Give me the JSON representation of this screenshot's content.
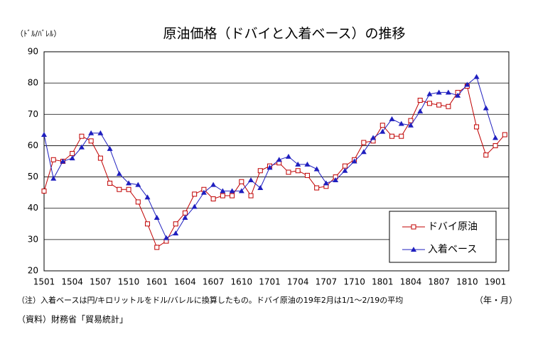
{
  "chart_data": {
    "type": "line",
    "title": "原油価格（ドバイと入着ベース）の推移",
    "y_unit": "（ﾄﾞﾙ/ﾊﾞﾚﾙ）",
    "x_unit": "（年・月）",
    "note": "（注）入着ベースは円/キロリットルをドル/バレルに換算したもの。ドバイ原油の19年2月は1/1～2/19の平均",
    "source": "（資料）財務省「貿易統計」",
    "categories": [
      "1501",
      null,
      null,
      "1504",
      null,
      null,
      "1507",
      null,
      null,
      "1510",
      null,
      null,
      "1601",
      null,
      null,
      "1604",
      null,
      null,
      "1607",
      null,
      null,
      "1610",
      null,
      null,
      "1701",
      null,
      null,
      "1704",
      null,
      null,
      "1707",
      null,
      null,
      "1710",
      null,
      null,
      "1801",
      null,
      null,
      "1804",
      null,
      null,
      "1807",
      null,
      null,
      "1810",
      null,
      null,
      "1901",
      null
    ],
    "series": [
      {
        "name": "ドバイ原油",
        "color": "#c00000",
        "marker": "square",
        "values": [
          45.5,
          55.5,
          55,
          57.5,
          63,
          61.5,
          56,
          48,
          46,
          46,
          42,
          35,
          27.5,
          29.5,
          35,
          38.5,
          44.5,
          46,
          43,
          44,
          44,
          48.5,
          44,
          52,
          53.5,
          54.5,
          51.5,
          52,
          50.5,
          46.5,
          47,
          50,
          53.5,
          55.5,
          61,
          61.5,
          66.5,
          63,
          63,
          68,
          74.5,
          73.5,
          73,
          72.5,
          77,
          79,
          66,
          57,
          60,
          63.5
        ]
      },
      {
        "name": "入着ベース",
        "color": "#1f1fbf",
        "marker": "triangle",
        "values": [
          63.5,
          49.5,
          55,
          56,
          59.5,
          64,
          64,
          59,
          51,
          48,
          47.5,
          43.5,
          37,
          30.5,
          32,
          37,
          40.5,
          45,
          47.5,
          45.5,
          45.5,
          45.5,
          49,
          46.5,
          53,
          55.5,
          56.5,
          54,
          54,
          52.5,
          48,
          49,
          52,
          55,
          58,
          62.5,
          64.5,
          68.5,
          67,
          66.5,
          71,
          76.5,
          77,
          77,
          76,
          79.5,
          82,
          72,
          62.5,
          null
        ]
      }
    ],
    "ylim": [
      20,
      90
    ],
    "yticks": [
      20,
      30,
      40,
      50,
      60,
      70,
      80,
      90
    ],
    "grid": true,
    "legend": "lower right"
  }
}
